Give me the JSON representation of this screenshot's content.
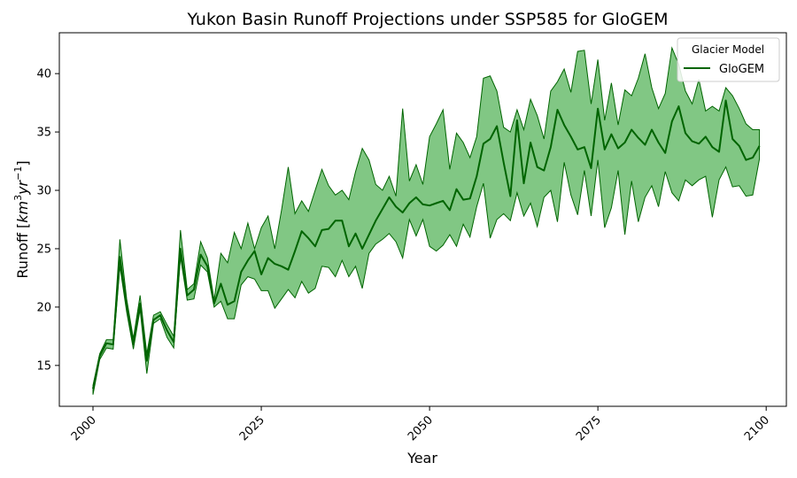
{
  "chart_data": {
    "type": "line",
    "title": "Yukon Basin Runoff Projections under SSP585 for GloGEM",
    "xlabel": "Year",
    "ylabel_text": "Runoff [",
    "ylabel_km": "km",
    "ylabel_exp3": "3",
    "ylabel_yr": "yr",
    "ylabel_expm1": "−1",
    "ylabel_close": "]",
    "xlim": [
      1995,
      2103
    ],
    "ylim": [
      11.5,
      43.5
    ],
    "xticks": [
      2000,
      2025,
      2050,
      2075,
      2100
    ],
    "yticks": [
      15,
      20,
      25,
      30,
      35,
      40
    ],
    "grid": false,
    "legend": {
      "title": "Glacier Model",
      "placement": "top-right",
      "entries": [
        "GloGEM"
      ]
    },
    "colors": {
      "line": "#006400",
      "fill": "#4CAF50",
      "fill_opacity": 0.7
    },
    "series": [
      {
        "name": "GloGEM",
        "x": [
          2000,
          2001,
          2002,
          2003,
          2004,
          2005,
          2006,
          2007,
          2008,
          2009,
          2010,
          2011,
          2012,
          2013,
          2014,
          2015,
          2016,
          2017,
          2018,
          2019,
          2020,
          2021,
          2022,
          2023,
          2024,
          2025,
          2026,
          2027,
          2028,
          2029,
          2030,
          2031,
          2032,
          2033,
          2034,
          2035,
          2036,
          2037,
          2038,
          2039,
          2040,
          2041,
          2042,
          2043,
          2044,
          2045,
          2046,
          2047,
          2048,
          2049,
          2050,
          2051,
          2052,
          2053,
          2054,
          2055,
          2056,
          2057,
          2058,
          2059,
          2060,
          2061,
          2062,
          2063,
          2064,
          2065,
          2066,
          2067,
          2068,
          2069,
          2070,
          2071,
          2072,
          2073,
          2074,
          2075,
          2076,
          2077,
          2078,
          2079,
          2080,
          2081,
          2082,
          2083,
          2084,
          2085,
          2086,
          2087,
          2088,
          2089,
          2090,
          2091,
          2092,
          2093,
          2094,
          2095,
          2096,
          2097,
          2098,
          2099
        ],
        "mean": [
          13.0,
          15.8,
          16.9,
          16.8,
          24.3,
          20.1,
          16.8,
          20.3,
          15.4,
          18.9,
          19.3,
          18.0,
          17.0,
          25.0,
          21.0,
          21.5,
          24.5,
          23.5,
          20.3,
          22.0,
          20.2,
          20.5,
          23.0,
          24.0,
          24.8,
          22.8,
          24.2,
          23.7,
          23.5,
          23.2,
          24.8,
          26.5,
          25.9,
          25.2,
          26.6,
          26.7,
          27.4,
          27.4,
          25.2,
          26.3,
          25.0,
          26.2,
          27.4,
          28.4,
          29.4,
          28.6,
          28.1,
          28.9,
          29.4,
          28.8,
          28.7,
          28.9,
          29.1,
          28.3,
          30.1,
          29.2,
          29.3,
          31.2,
          34.0,
          34.4,
          35.5,
          32.4,
          29.5,
          36.0,
          30.6,
          34.1,
          32.0,
          31.7,
          33.7,
          36.9,
          35.6,
          34.6,
          33.5,
          33.7,
          31.9,
          37.0,
          33.5,
          34.8,
          33.6,
          34.1,
          35.2,
          34.5,
          33.9,
          35.2,
          34.1,
          33.2,
          35.9,
          37.2,
          34.9,
          34.2,
          34.0,
          34.6,
          33.7,
          33.3,
          37.7,
          34.4,
          33.8,
          32.6,
          32.8,
          33.8
        ],
        "upper": [
          13.3,
          16.0,
          17.2,
          17.2,
          25.8,
          20.7,
          17.3,
          21.0,
          16.0,
          19.3,
          19.6,
          18.5,
          17.5,
          26.6,
          21.5,
          22.0,
          25.6,
          24.2,
          20.6,
          24.6,
          23.8,
          26.4,
          25.0,
          27.2,
          25.0,
          26.8,
          27.8,
          25.0,
          28.3,
          32.0,
          28.0,
          29.1,
          28.2,
          30.0,
          31.8,
          30.4,
          29.6,
          30.0,
          29.2,
          31.6,
          33.6,
          32.6,
          30.5,
          30.0,
          31.2,
          29.5,
          37.0,
          30.8,
          32.2,
          30.5,
          34.6,
          35.7,
          36.9,
          31.8,
          34.9,
          34.1,
          32.8,
          34.6,
          39.6,
          39.8,
          38.5,
          35.4,
          35.0,
          36.9,
          35.2,
          37.8,
          36.4,
          34.4,
          38.5,
          39.3,
          40.4,
          38.4,
          41.9,
          42.0,
          37.4,
          41.2,
          36.0,
          39.2,
          35.6,
          38.6,
          38.1,
          39.6,
          41.7,
          38.8,
          37.0,
          38.3,
          42.2,
          40.8,
          38.5,
          37.4,
          39.5,
          36.8,
          37.2,
          36.8,
          38.8,
          38.1,
          37.0,
          35.7,
          35.2,
          35.2
        ],
        "lower": [
          12.5,
          15.5,
          16.5,
          16.4,
          23.5,
          19.6,
          16.4,
          19.8,
          14.3,
          18.6,
          19.0,
          17.4,
          16.5,
          24.3,
          20.6,
          20.7,
          23.6,
          23.0,
          20.0,
          20.5,
          19.0,
          19.0,
          21.9,
          22.6,
          22.4,
          21.4,
          21.4,
          19.9,
          20.7,
          21.5,
          20.8,
          22.2,
          21.2,
          21.6,
          23.5,
          23.4,
          22.6,
          24.0,
          22.6,
          23.5,
          21.6,
          24.6,
          25.4,
          25.8,
          26.3,
          25.6,
          24.2,
          27.5,
          26.1,
          27.5,
          25.2,
          24.8,
          25.3,
          26.2,
          25.2,
          27.1,
          26.0,
          28.6,
          30.6,
          25.9,
          27.5,
          28.0,
          27.4,
          29.8,
          27.8,
          28.9,
          26.9,
          29.4,
          30.0,
          27.3,
          32.4,
          29.6,
          27.9,
          31.7,
          27.8,
          32.6,
          26.8,
          28.5,
          31.7,
          26.2,
          30.8,
          27.3,
          29.4,
          30.4,
          28.6,
          31.6,
          29.8,
          29.1,
          30.9,
          30.4,
          30.9,
          31.2,
          27.7,
          30.9,
          32.0,
          30.3,
          30.4,
          29.5,
          29.6,
          32.7
        ]
      }
    ]
  }
}
